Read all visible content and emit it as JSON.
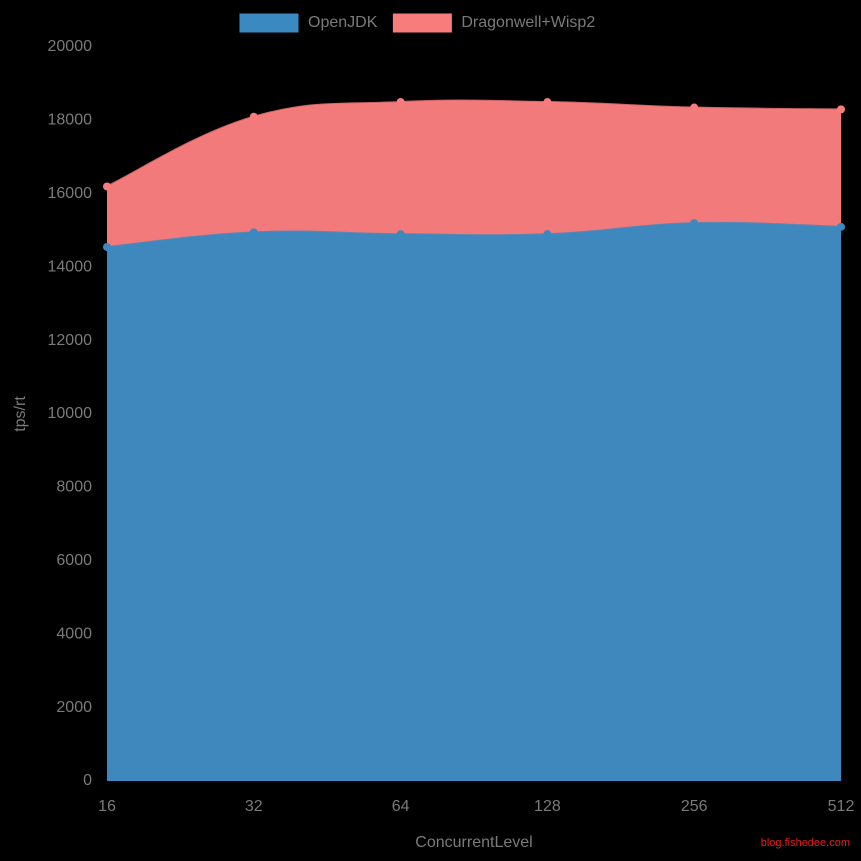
{
  "chart_data": {
    "type": "area",
    "legend": "top",
    "x_label": "ConcurrentLevel",
    "y_label": "tps/rt",
    "watermark": "blog.fishedee.com",
    "categories": [
      "16",
      "32",
      "64",
      "128",
      "256",
      "512"
    ],
    "series": [
      {
        "name": "OpenJDK",
        "color": "#3a89c0",
        "values": [
          14550,
          14950,
          14900,
          14900,
          15200,
          15100
        ]
      },
      {
        "name": "Dragonwell+Wisp2",
        "color": "#f87c7c",
        "values": [
          16200,
          18100,
          18500,
          18500,
          18350,
          18300
        ]
      }
    ],
    "ylim": [
      0,
      20000
    ],
    "yticks": [
      0,
      2000,
      4000,
      6000,
      8000,
      10000,
      12000,
      14000,
      16000,
      18000,
      20000
    ],
    "grid": false
  }
}
